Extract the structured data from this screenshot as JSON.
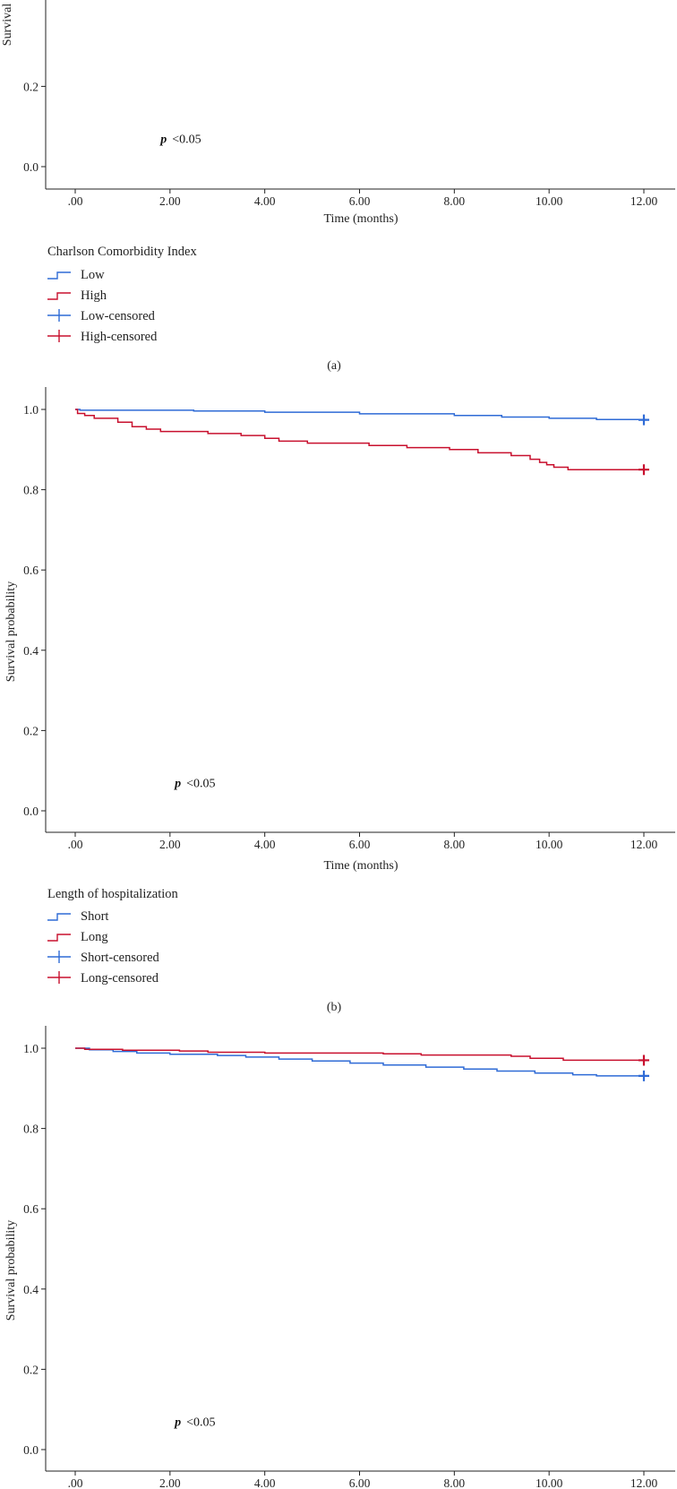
{
  "chart_data": [
    {
      "type": "line",
      "subtype": "kaplan-meier",
      "ylabel": "Survival probability",
      "xlabel": "Time (months)",
      "ylim": [
        0,
        1.05
      ],
      "xlim": [
        -0.65,
        12.6
      ],
      "x_ticks": [
        0,
        2,
        4,
        6,
        8,
        10,
        12
      ],
      "x_tick_labels": [
        ".00",
        "2.00",
        "4.00",
        "6.00",
        "8.00",
        "10.00",
        "12.00"
      ],
      "y_ticks": [
        0.2,
        0.0
      ],
      "y_tick_labels": [
        "0.2",
        "0.0"
      ],
      "annotation": {
        "p_symbol": "p",
        "text": "<0.05",
        "x": 1.8,
        "y": 0.07
      },
      "legend": {
        "title": "Charlson Comorbidity Index",
        "entries": [
          {
            "label": "Low",
            "kind": "step",
            "color": "#2f6bd6"
          },
          {
            "label": "High",
            "kind": "step",
            "color": "#c8102e"
          },
          {
            "label": "Low-censored",
            "kind": "cross",
            "color": "#2f6bd6"
          },
          {
            "label": "High-censored",
            "kind": "cross",
            "color": "#c8102e"
          }
        ]
      },
      "caption": "(a)",
      "series": []
    },
    {
      "type": "line",
      "subtype": "kaplan-meier",
      "ylabel": "Survival probability",
      "xlabel": "Time (months)",
      "ylim": [
        0,
        1.05
      ],
      "xlim": [
        -0.65,
        12.6
      ],
      "x_ticks": [
        0,
        2,
        4,
        6,
        8,
        10,
        12
      ],
      "x_tick_labels": [
        ".00",
        "2.00",
        "4.00",
        "6.00",
        "8.00",
        "10.00",
        "12.00"
      ],
      "y_ticks": [
        1.0,
        0.8,
        0.6,
        0.4,
        0.2,
        0.0
      ],
      "y_tick_labels": [
        "1.0",
        "0.8",
        "0.6",
        "0.4",
        "0.2",
        "0.0"
      ],
      "annotation": {
        "p_symbol": "p",
        "text": "<0.05",
        "x": 2.1,
        "y": 0.07
      },
      "legend": {
        "title": "Length of hospitalization",
        "entries": [
          {
            "label": "Short",
            "kind": "step",
            "color": "#2f6bd6"
          },
          {
            "label": "Long",
            "kind": "step",
            "color": "#c8102e"
          },
          {
            "label": "Short-censored",
            "kind": "cross",
            "color": "#2f6bd6"
          },
          {
            "label": "Long-censored",
            "kind": "cross",
            "color": "#c8102e"
          }
        ]
      },
      "caption": "(b)",
      "series": [
        {
          "name": "Short",
          "color": "#2f6bd6",
          "x": [
            0,
            0.1,
            2.5,
            4.0,
            6.0,
            8.0,
            9.0,
            10.0,
            11.0,
            12.0
          ],
          "y": [
            1.0,
            0.998,
            0.996,
            0.993,
            0.989,
            0.985,
            0.981,
            0.978,
            0.975,
            0.974
          ],
          "censor_at": 12.0
        },
        {
          "name": "Long",
          "color": "#c8102e",
          "x": [
            0,
            0.05,
            0.2,
            0.4,
            0.9,
            1.2,
            1.5,
            1.8,
            2.3,
            2.8,
            3.5,
            4.0,
            4.3,
            4.9,
            5.6,
            6.2,
            7.0,
            7.9,
            8.5,
            9.2,
            9.6,
            9.8,
            9.95,
            10.1,
            10.4,
            11.0,
            12.0
          ],
          "y": [
            1.0,
            0.99,
            0.985,
            0.978,
            0.968,
            0.957,
            0.951,
            0.945,
            0.945,
            0.94,
            0.935,
            0.928,
            0.921,
            0.916,
            0.916,
            0.91,
            0.905,
            0.9,
            0.892,
            0.885,
            0.876,
            0.868,
            0.862,
            0.856,
            0.85,
            0.85,
            0.85
          ],
          "censor_at": 12.0
        }
      ]
    },
    {
      "type": "line",
      "subtype": "kaplan-meier",
      "ylabel": "Survival probability",
      "xlabel": "",
      "ylim": [
        0,
        1.05
      ],
      "xlim": [
        -0.65,
        12.6
      ],
      "x_ticks": [
        0,
        2,
        4,
        6,
        8,
        10,
        12
      ],
      "x_tick_labels": [
        ".00",
        "2.00",
        "4.00",
        "6.00",
        "8.00",
        "10.00",
        "12.00"
      ],
      "y_ticks": [
        1.0,
        0.8,
        0.6,
        0.4,
        0.2,
        0.0
      ],
      "y_tick_labels": [
        "1.0",
        "0.8",
        "0.6",
        "0.4",
        "0.2",
        "0.0"
      ],
      "annotation": {
        "p_symbol": "p",
        "text": "<0.05",
        "x": 2.1,
        "y": 0.07
      },
      "legend": null,
      "caption": "",
      "series": [
        {
          "name": "Short",
          "color": "#2f6bd6",
          "x": [
            0,
            0.3,
            0.8,
            1.3,
            2.0,
            3.0,
            3.6,
            4.3,
            5.0,
            5.8,
            6.5,
            7.4,
            8.2,
            8.9,
            9.7,
            10.5,
            11.0,
            12.0
          ],
          "y": [
            1.0,
            0.996,
            0.992,
            0.988,
            0.985,
            0.982,
            0.978,
            0.973,
            0.968,
            0.963,
            0.958,
            0.953,
            0.948,
            0.943,
            0.938,
            0.934,
            0.931,
            0.931
          ],
          "censor_at": 12.0
        },
        {
          "name": "Long",
          "color": "#c8102e",
          "x": [
            0,
            0.2,
            1.0,
            2.2,
            2.8,
            4.0,
            6.5,
            7.3,
            9.2,
            9.6,
            10.3,
            12.0
          ],
          "y": [
            1.0,
            0.997,
            0.995,
            0.993,
            0.99,
            0.988,
            0.986,
            0.983,
            0.98,
            0.975,
            0.97,
            0.97
          ],
          "censor_at": 12.0
        }
      ]
    }
  ]
}
